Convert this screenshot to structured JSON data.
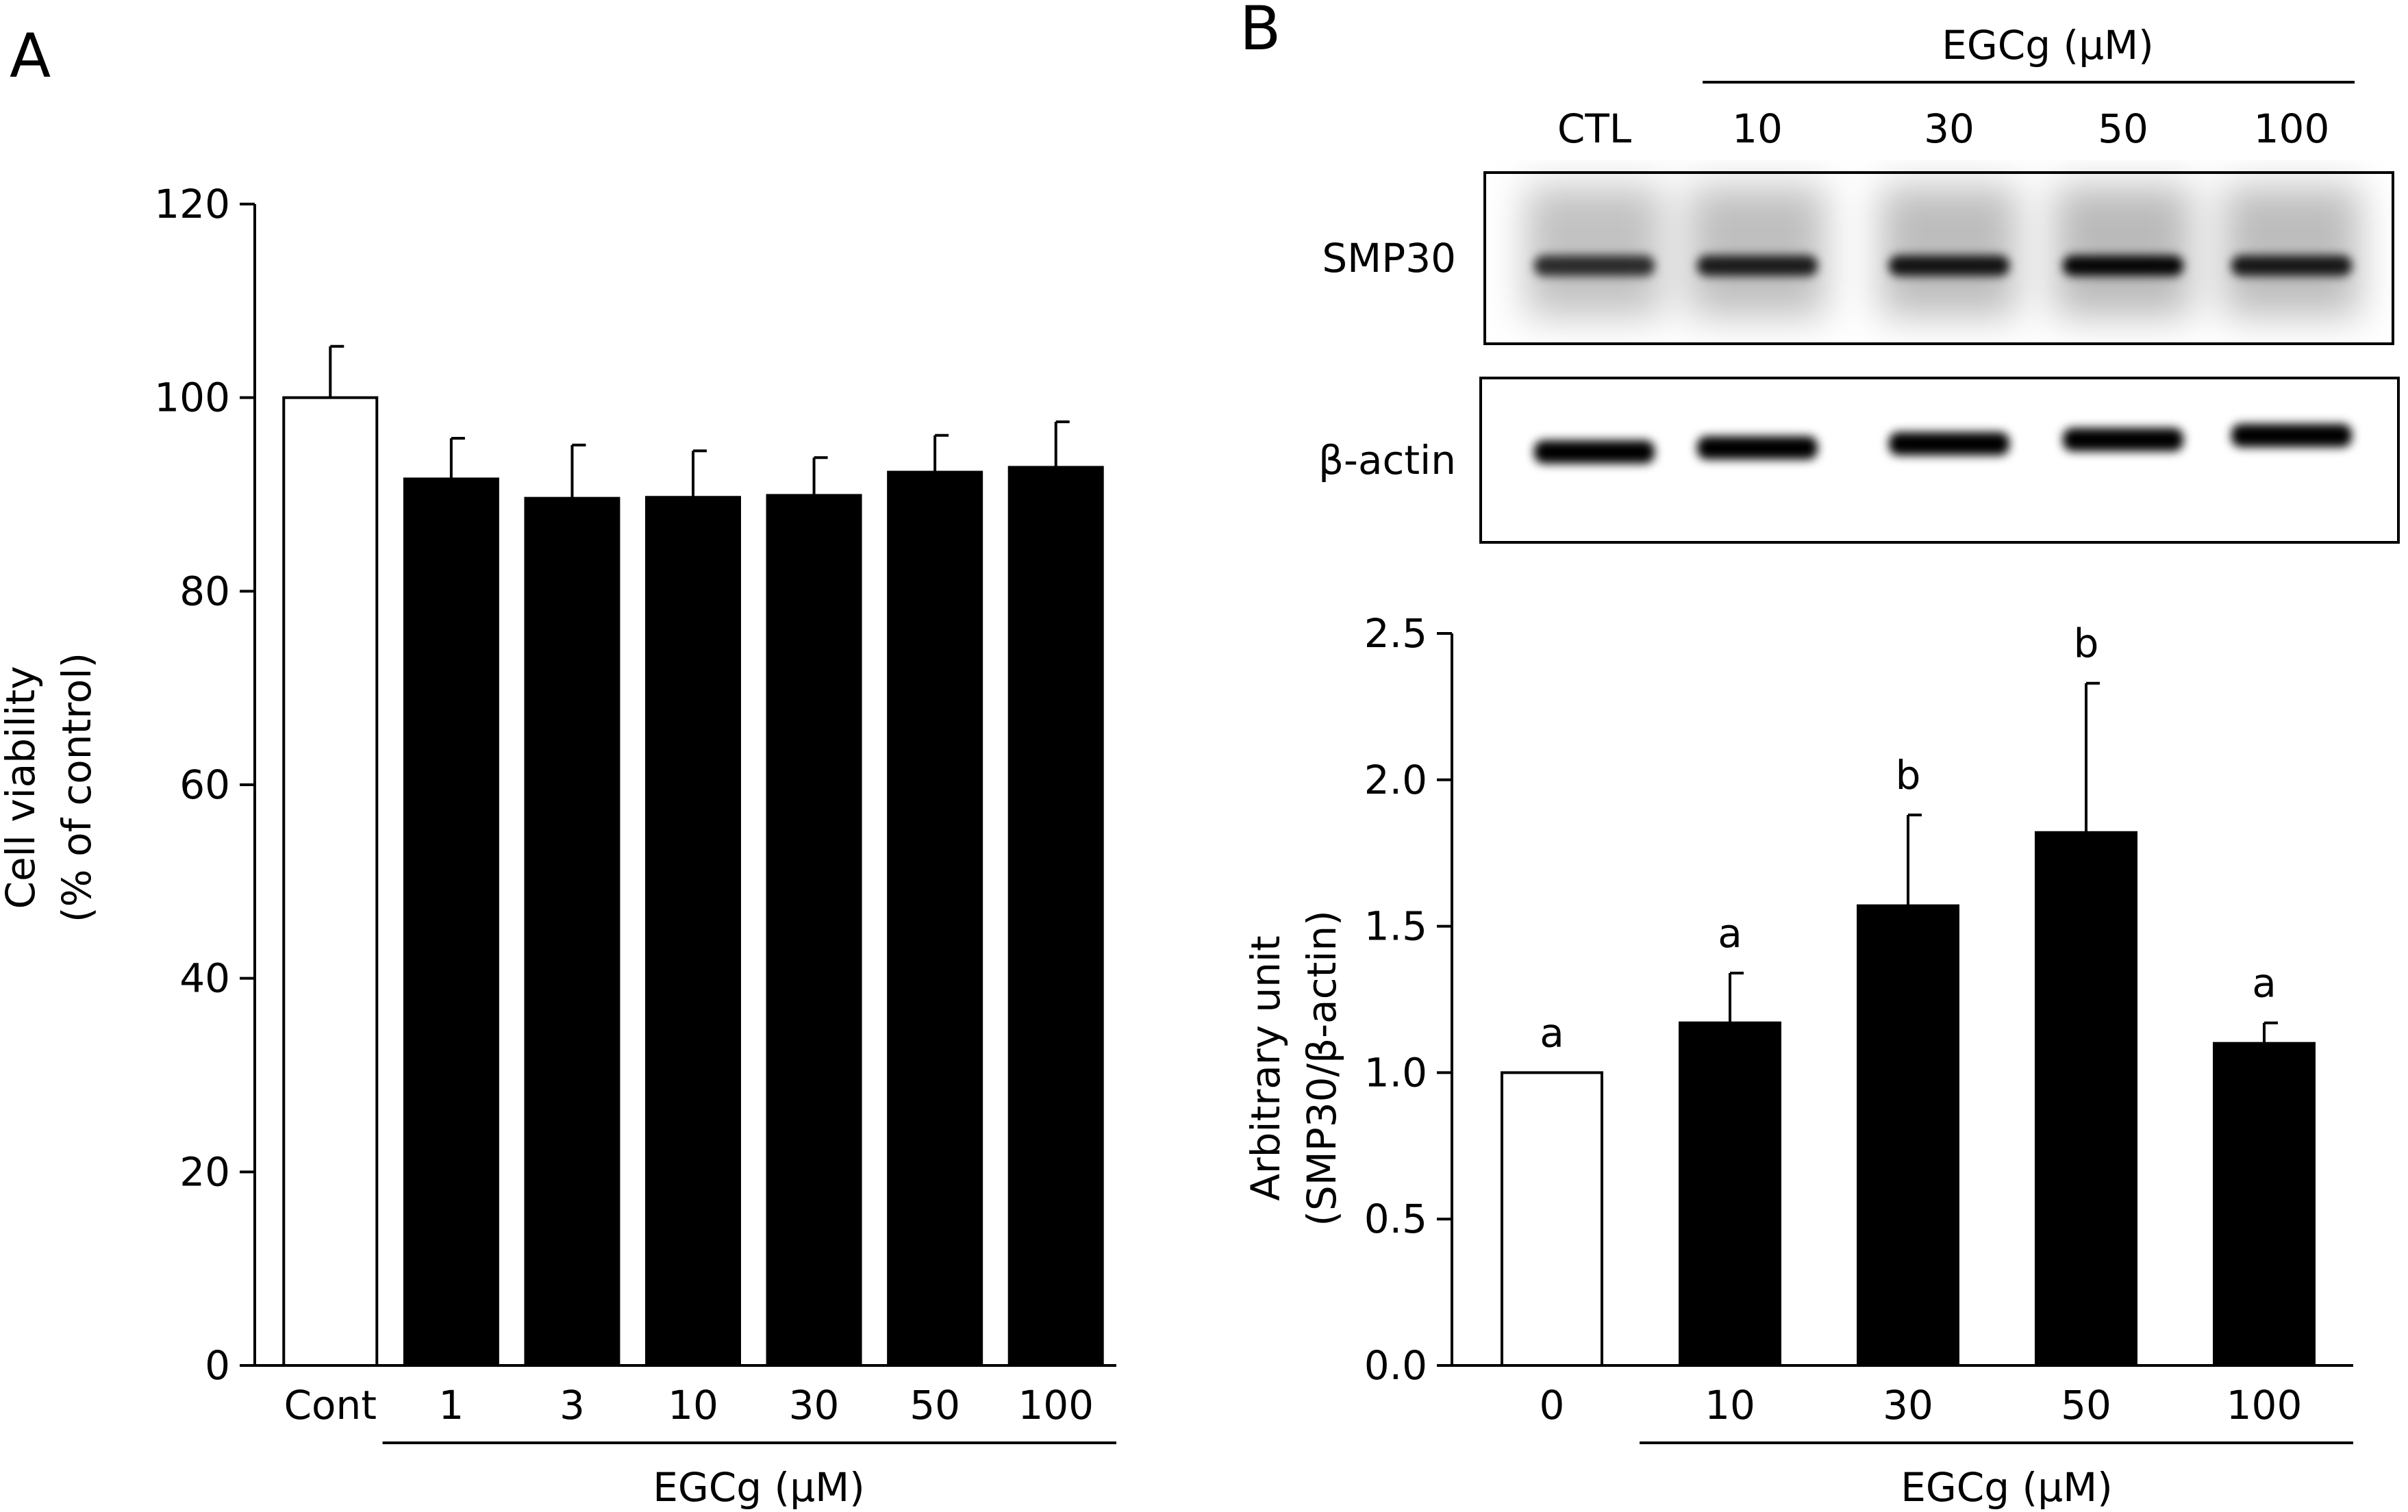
{
  "panels": {
    "A": {
      "letter": "A",
      "chart_data": {
        "type": "bar",
        "categories": [
          "Cont",
          "1",
          "3",
          "10",
          "30",
          "50",
          "100"
        ],
        "values": [
          100,
          91.6,
          89.6,
          89.7,
          89.9,
          92.3,
          92.8
        ],
        "errors": [
          5.3,
          4.2,
          5.5,
          4.8,
          3.9,
          3.8,
          4.7
        ],
        "fills": [
          "#ffffff",
          "#000000",
          "#000000",
          "#000000",
          "#000000",
          "#000000",
          "#000000"
        ],
        "ylabel_line1": "Cell viability",
        "ylabel_line2": "(% of control)",
        "xlabel": "EGCg (μM)",
        "ylim": [
          0,
          120
        ],
        "yticks": [
          "0",
          "20",
          "40",
          "60",
          "80",
          "100",
          "120"
        ],
        "grid": false
      }
    },
    "B": {
      "letter": "B",
      "blot": {
        "treatment_label": "EGCg (μM)",
        "lanes": [
          "CTL",
          "10",
          "30",
          "50",
          "100"
        ],
        "rows": [
          {
            "label": "SMP30",
            "band_intensity": [
              0.78,
              0.86,
              0.9,
              0.97,
              0.88
            ]
          },
          {
            "label": "β-actin",
            "band_intensity": [
              1.0,
              1.0,
              1.0,
              1.0,
              1.0
            ]
          }
        ]
      },
      "chart_data": {
        "type": "bar",
        "categories": [
          "0",
          "10",
          "30",
          "50",
          "100"
        ],
        "values": [
          1.0,
          1.17,
          1.57,
          1.82,
          1.1
        ],
        "errors": [
          0,
          0.17,
          0.31,
          0.51,
          0.07
        ],
        "significance": [
          "a",
          "a",
          "b",
          "b",
          "a"
        ],
        "fills": [
          "#ffffff",
          "#000000",
          "#000000",
          "#000000",
          "#000000"
        ],
        "ylabel_line1": "Arbitrary unit",
        "ylabel_line2": "(SMP30/β-actin)",
        "xlabel": "EGCg (μM)",
        "ylim": [
          0,
          2.5
        ],
        "yticks": [
          "0.0",
          "0.5",
          "1.0",
          "1.5",
          "2.0",
          "2.5"
        ],
        "grid": false
      }
    }
  }
}
